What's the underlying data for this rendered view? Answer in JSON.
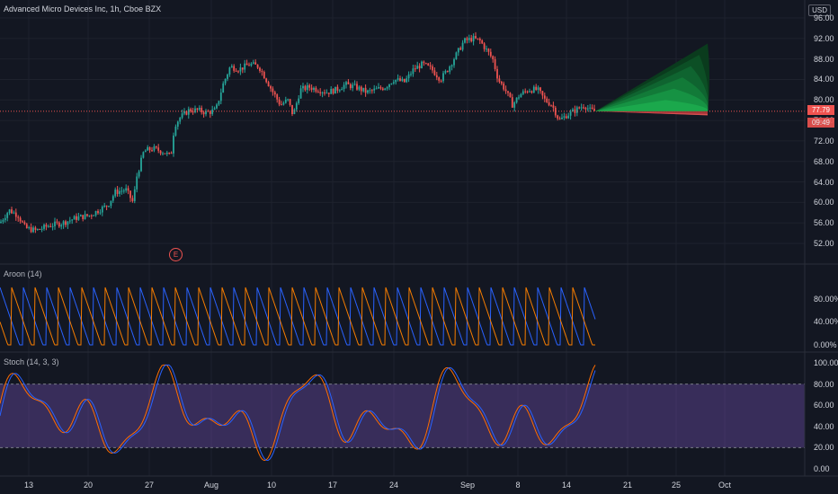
{
  "header": {
    "title": "Advanced Micro Devices Inc, 1h, Cboe BZX",
    "currency": "USD"
  },
  "price_axis": {
    "ticks": [
      "96.00",
      "92.00",
      "88.00",
      "84.00",
      "80.00",
      "76.00",
      "72.00",
      "68.00",
      "64.00",
      "60.00",
      "56.00",
      "52.00"
    ],
    "last_price": "77.79",
    "countdown": "09:49"
  },
  "aroon": {
    "title": "Aroon (14)",
    "ticks": [
      "80.00%",
      "40.00%",
      "0.00%"
    ],
    "up_color": "#2962ff",
    "down_color": "#f57c00"
  },
  "stoch": {
    "title": "Stoch (14, 3, 3)",
    "ticks": [
      "100.00",
      "80.00",
      "60.00",
      "40.00",
      "20.00",
      "0.00"
    ],
    "k_color": "#2962ff",
    "d_color": "#ff6d00",
    "band_color": "#7e57c2"
  },
  "time_axis": [
    "13",
    "20",
    "27",
    "Aug",
    "10",
    "17",
    "24",
    "Sep",
    "8",
    "14",
    "21",
    "25",
    "Oct"
  ],
  "earnings_marker": "E",
  "colors": {
    "up": "#26a69a",
    "down": "#ef5350",
    "background": "#131722"
  },
  "chart_data": {
    "type": "candlestick",
    "title": "Advanced Micro Devices Inc, 1h, Cboe BZX",
    "x_ticks": [
      "13",
      "20",
      "27",
      "Aug",
      "10",
      "17",
      "24",
      "Sep",
      "8",
      "14",
      "21",
      "25",
      "Oct"
    ],
    "ylim": [
      50,
      97
    ],
    "close_path": [
      [
        0,
        56
      ],
      [
        10,
        58.5
      ],
      [
        20,
        57.5
      ],
      [
        28,
        55
      ],
      [
        40,
        54.5
      ],
      [
        55,
        55.5
      ],
      [
        70,
        56
      ],
      [
        85,
        57
      ],
      [
        100,
        57.5
      ],
      [
        110,
        58.5
      ],
      [
        120,
        59.5
      ],
      [
        128,
        62
      ],
      [
        140,
        62.5
      ],
      [
        148,
        60
      ],
      [
        152,
        65
      ],
      [
        160,
        70
      ],
      [
        170,
        70.5
      ],
      [
        180,
        70
      ],
      [
        190,
        69
      ],
      [
        194,
        75
      ],
      [
        200,
        76.5
      ],
      [
        210,
        78
      ],
      [
        220,
        78
      ],
      [
        230,
        77.5
      ],
      [
        240,
        78
      ],
      [
        248,
        83
      ],
      [
        256,
        86.5
      ],
      [
        266,
        86
      ],
      [
        278,
        87
      ],
      [
        288,
        86.5
      ],
      [
        296,
        84
      ],
      [
        302,
        82
      ],
      [
        312,
        79
      ],
      [
        320,
        80
      ],
      [
        326,
        77
      ],
      [
        334,
        82
      ],
      [
        344,
        82.5
      ],
      [
        354,
        82
      ],
      [
        364,
        81.5
      ],
      [
        374,
        82
      ],
      [
        384,
        83
      ],
      [
        396,
        82.5
      ],
      [
        408,
        81.5
      ],
      [
        418,
        82
      ],
      [
        428,
        82.5
      ],
      [
        438,
        84
      ],
      [
        450,
        83.5
      ],
      [
        460,
        86
      ],
      [
        470,
        87
      ],
      [
        480,
        86
      ],
      [
        490,
        84
      ],
      [
        498,
        86
      ],
      [
        508,
        89
      ],
      [
        516,
        91.5
      ],
      [
        526,
        92
      ],
      [
        534,
        91.5
      ],
      [
        540,
        90
      ],
      [
        548,
        88
      ],
      [
        554,
        84
      ],
      [
        562,
        82
      ],
      [
        570,
        79
      ],
      [
        578,
        81
      ],
      [
        588,
        82
      ],
      [
        598,
        82
      ],
      [
        606,
        80
      ],
      [
        614,
        79
      ],
      [
        622,
        76
      ],
      [
        630,
        77
      ],
      [
        640,
        78
      ],
      [
        650,
        79
      ],
      [
        656,
        78
      ],
      [
        662,
        77.79
      ]
    ],
    "last_price": 77.79,
    "forecast_cone": {
      "upper": 91,
      "lower": 77
    }
  }
}
